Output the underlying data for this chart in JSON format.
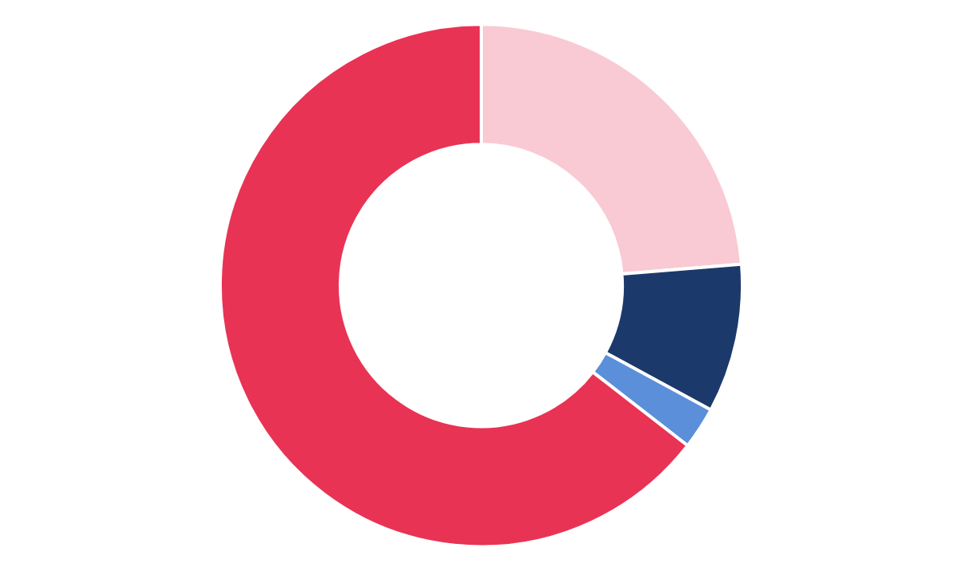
{
  "chart_data": {
    "type": "donut",
    "categories": [
      null,
      null,
      null,
      null
    ],
    "values": [
      23.7,
      9.2,
      2.6,
      64.5
    ],
    "colors": [
      "#f9cad3",
      "#1b3a6b",
      "#5b8fd9",
      "#e83355"
    ]
  }
}
